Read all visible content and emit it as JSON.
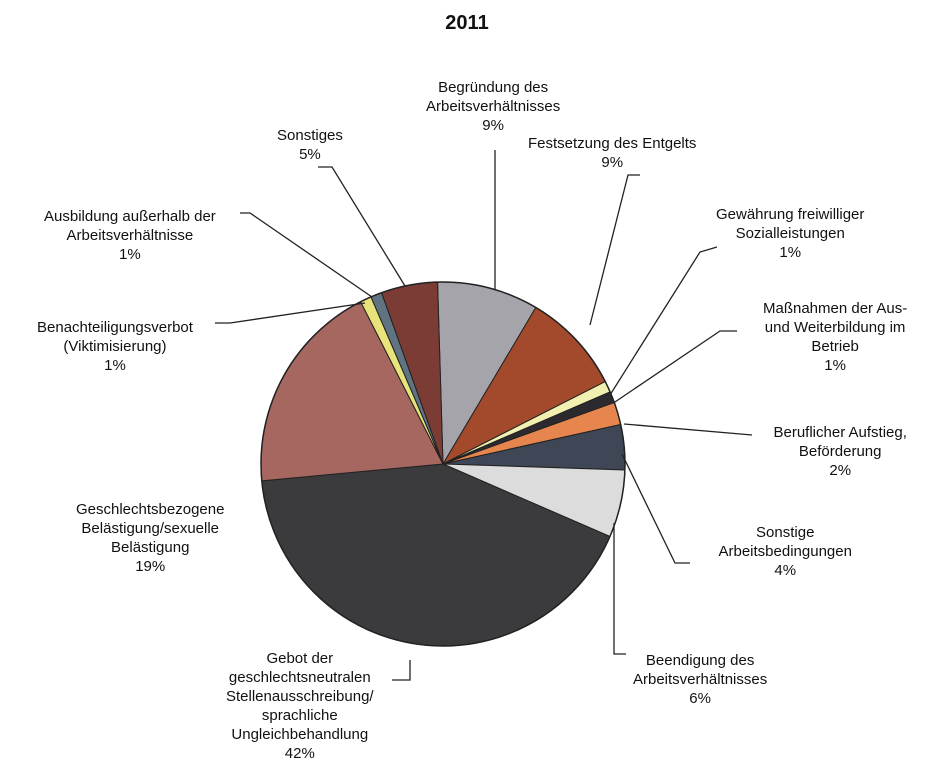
{
  "chart_data": {
    "type": "pie",
    "title": "2011",
    "slices": [
      {
        "label": [
          "Begründung des",
          "Arbeitsverhältnisses"
        ],
        "value_text": "9%",
        "value": 9,
        "color": "#a6a4ab"
      },
      {
        "label": [
          "Festsetzung des Entgelts"
        ],
        "value_text": "9%",
        "value": 9,
        "color": "#a34a2d"
      },
      {
        "label": [
          "Gewährung freiwilliger",
          "Sozialleistungen"
        ],
        "value_text": "1%",
        "value": 1,
        "color": "#f1f0b0"
      },
      {
        "label": [
          "Maßnahmen der Aus-",
          "und Weiterbildung im",
          "Betrieb"
        ],
        "value_text": "1%",
        "value": 1,
        "color": "#2c2a2e"
      },
      {
        "label": [
          "Beruflicher Aufstieg,",
          "Beförderung"
        ],
        "value_text": "2%",
        "value": 2,
        "color": "#e6864e"
      },
      {
        "label": [
          "Sonstige",
          "Arbeitsbedingungen"
        ],
        "value_text": "4%",
        "value": 4,
        "color": "#3f4656"
      },
      {
        "label": [
          "Beendigung des",
          "Arbeitsverhältnisses"
        ],
        "value_text": "6%",
        "value": 6,
        "color": "#dcdcdc"
      },
      {
        "label": [
          "Gebot der",
          "geschlechtsneutralen",
          "Stellenausschreibung/",
          "sprachliche",
          "Ungleichbehandlung"
        ],
        "value_text": "42%",
        "value": 42,
        "color": "#3b3b3d"
      },
      {
        "label": [
          "Geschlechtsbezogene",
          "Belästigung/sexuelle",
          "Belästigung"
        ],
        "value_text": "19%",
        "value": 19,
        "color": "#a5675f"
      },
      {
        "label": [
          "Benachteiligungsverbot",
          "(Viktimisierung)"
        ],
        "value_text": "1%",
        "value": 1,
        "color": "#e8e37a"
      },
      {
        "label": [
          "Ausbildung außerhalb der",
          "Arbeitsverhältnisse"
        ],
        "value_text": "1%",
        "value": 1,
        "color": "#5f7480"
      },
      {
        "label": [
          "Sonstiges"
        ],
        "value_text": "5%",
        "value": 5,
        "color": "#7c3c36"
      }
    ]
  }
}
